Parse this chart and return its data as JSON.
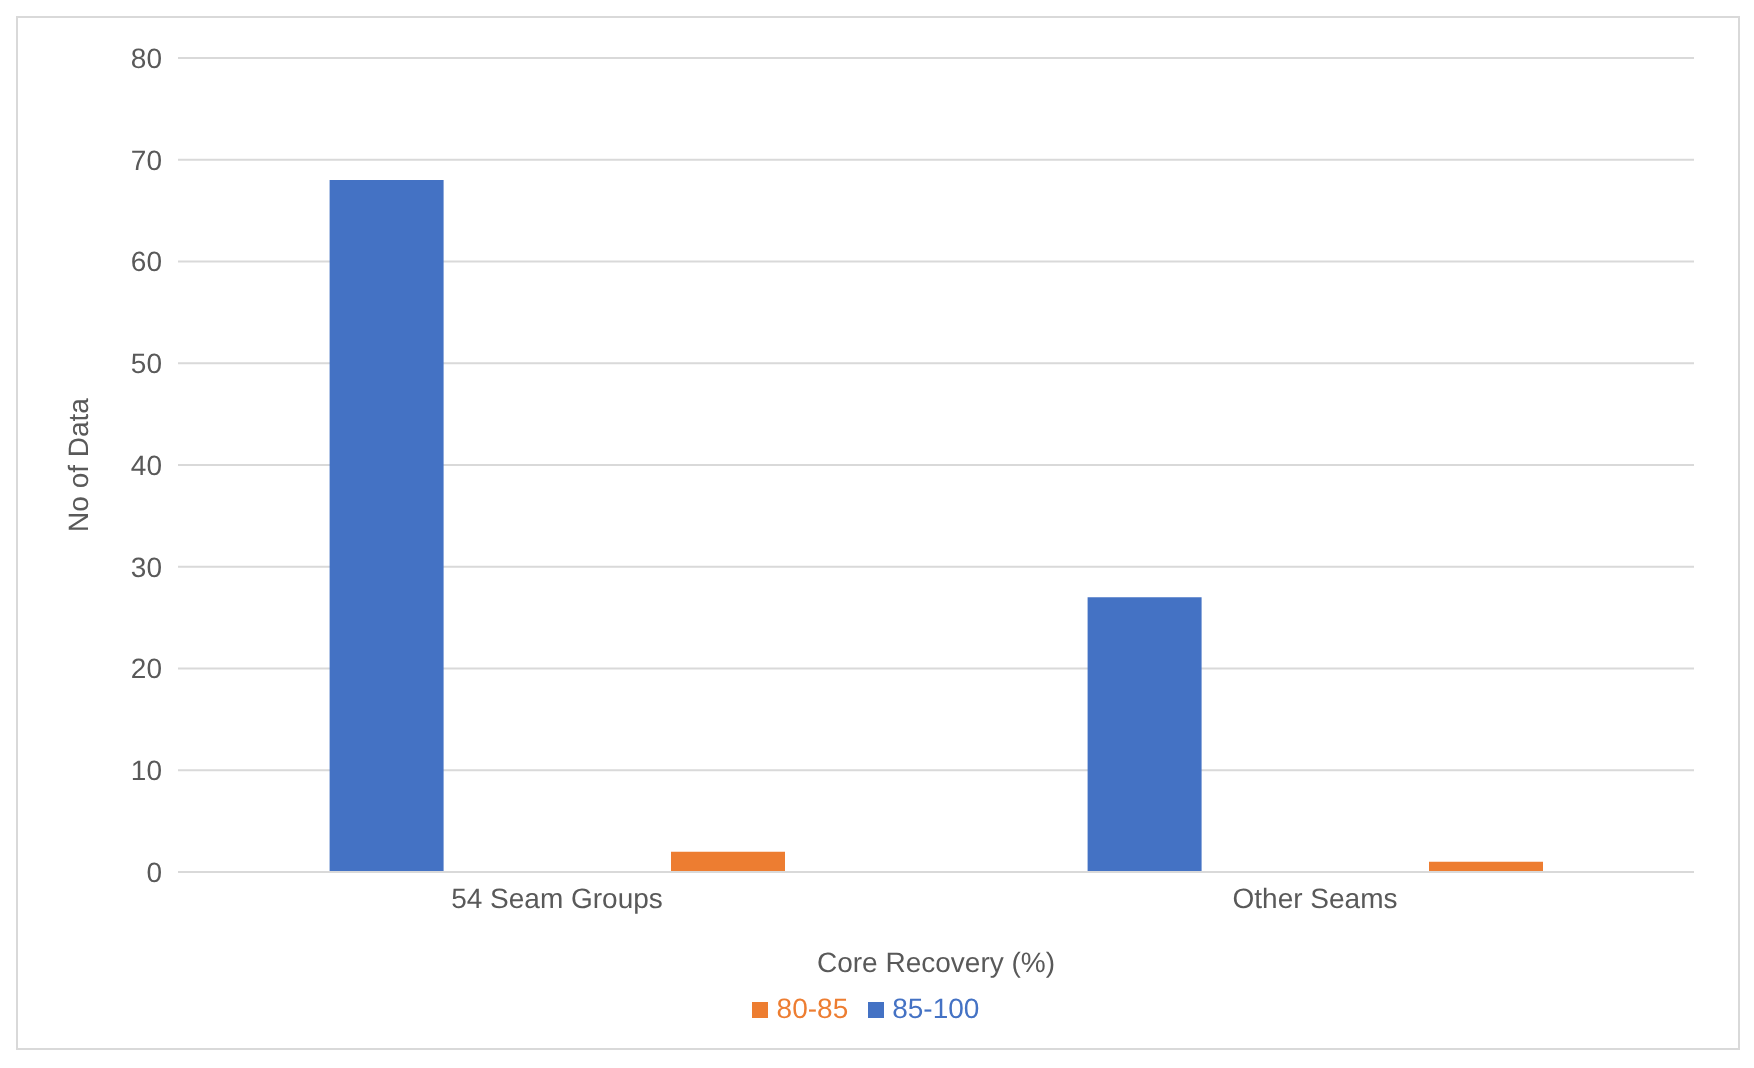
{
  "chart_data": {
    "type": "bar",
    "xlabel": "Core Recovery (%)",
    "ylabel": "No of Data",
    "categories": [
      "54 Seam Groups",
      "Other Seams"
    ],
    "series": [
      {
        "name": "85-100",
        "color": "#4472c4",
        "values": [
          68,
          27
        ]
      },
      {
        "name": "80-85",
        "color": "#ed7d31",
        "values": [
          2,
          1
        ]
      }
    ],
    "ylim": [
      0,
      80
    ],
    "yticks": [
      0,
      10,
      20,
      30,
      40,
      50,
      60,
      70,
      80
    ],
    "grid": "y",
    "legend": "bottom"
  }
}
